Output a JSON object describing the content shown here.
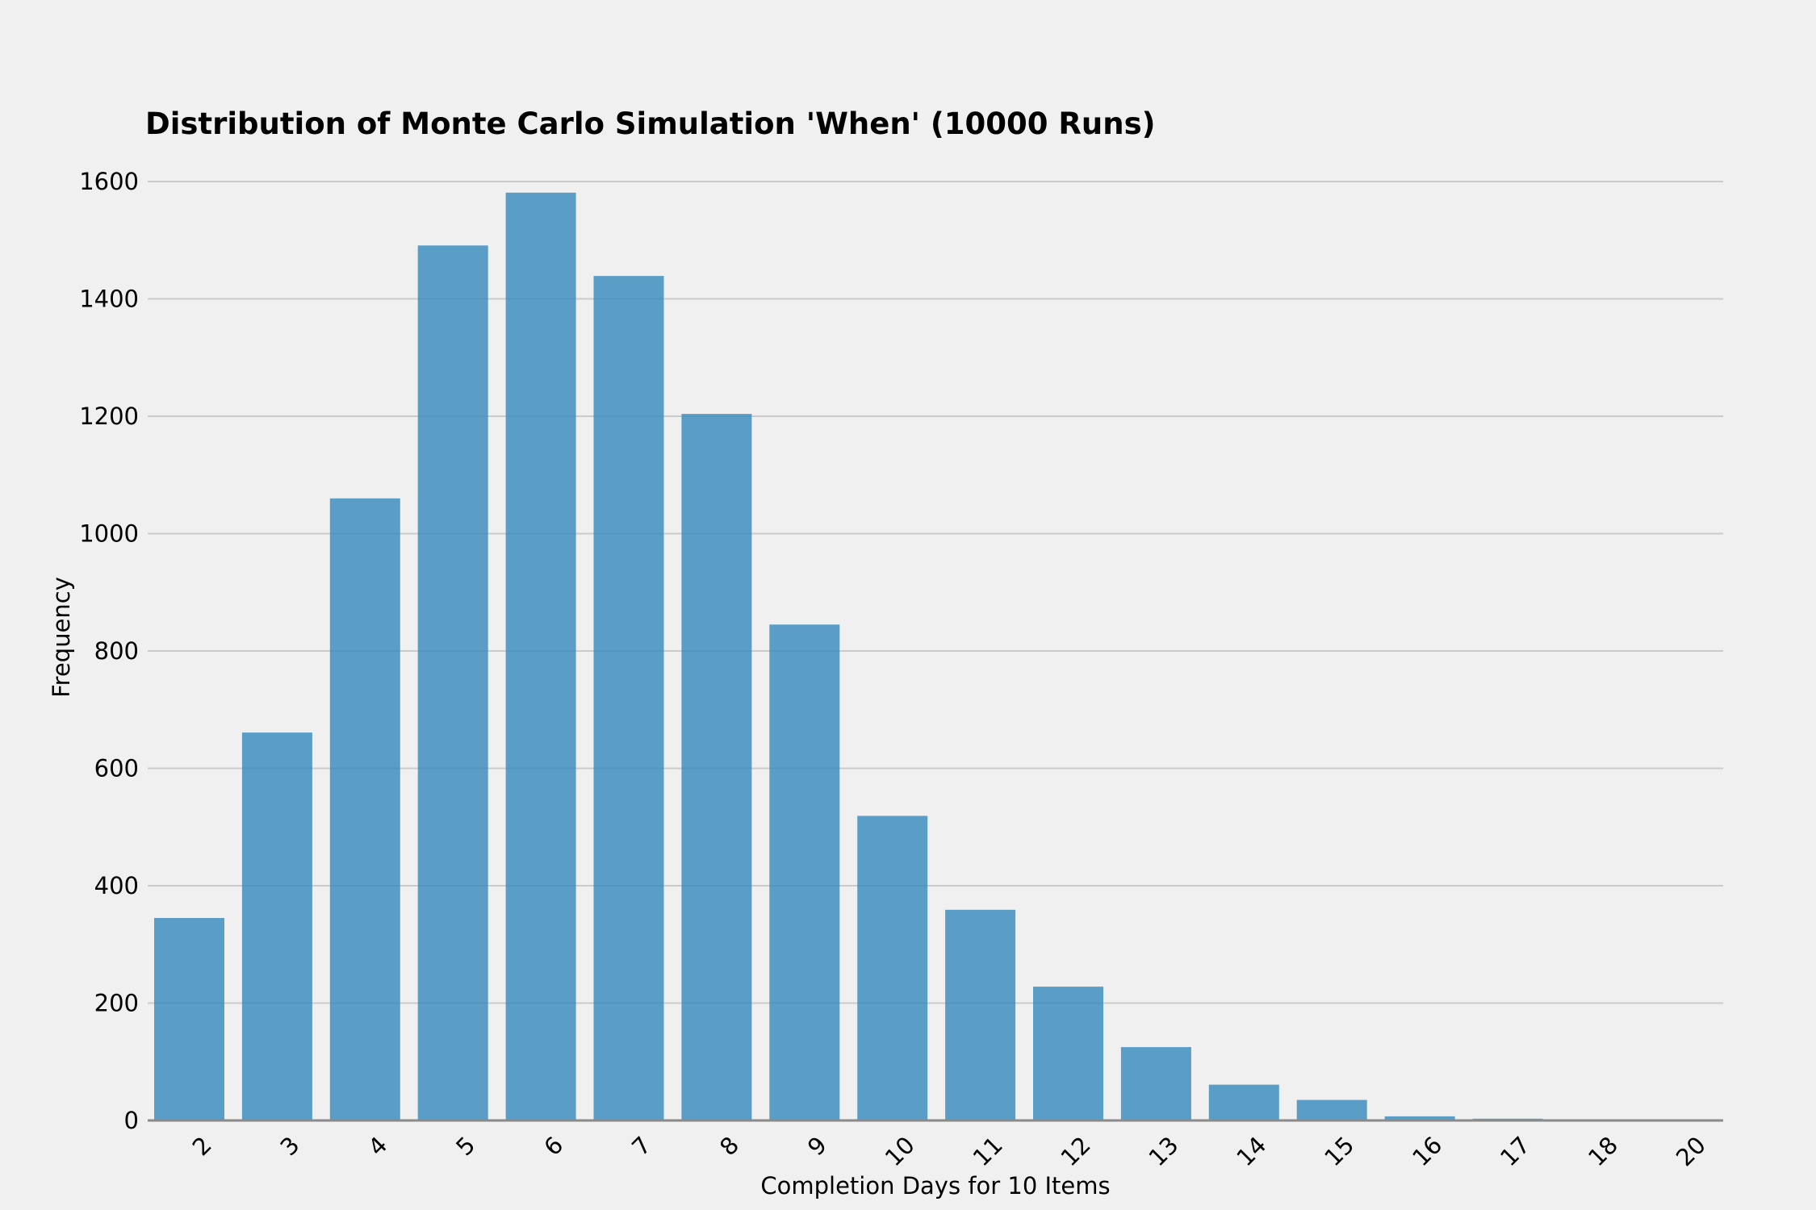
{
  "chart_data": {
    "type": "bar",
    "title": "Distribution of Monte Carlo Simulation 'When' (10000 Runs)",
    "xlabel": "Completion Days for 10 Items",
    "ylabel": "Frequency",
    "categories": [
      "2",
      "3",
      "4",
      "5",
      "6",
      "7",
      "8",
      "9",
      "10",
      "11",
      "12",
      "13",
      "14",
      "15",
      "16",
      "17",
      "18",
      "20"
    ],
    "values": [
      345,
      661,
      1060,
      1491,
      1581,
      1439,
      1204,
      845,
      519,
      359,
      228,
      125,
      61,
      35,
      7,
      3,
      1,
      1
    ],
    "ylim": [
      0,
      1600
    ],
    "yticks": [
      0,
      200,
      400,
      600,
      800,
      1000,
      1200,
      1400,
      1600
    ],
    "grid": "horizontal",
    "legend": "none",
    "colors": {
      "bar": "#348abd",
      "bar_opacity": 0.8,
      "background": "#f0f0f0",
      "grid": "#cbcbcb"
    }
  }
}
